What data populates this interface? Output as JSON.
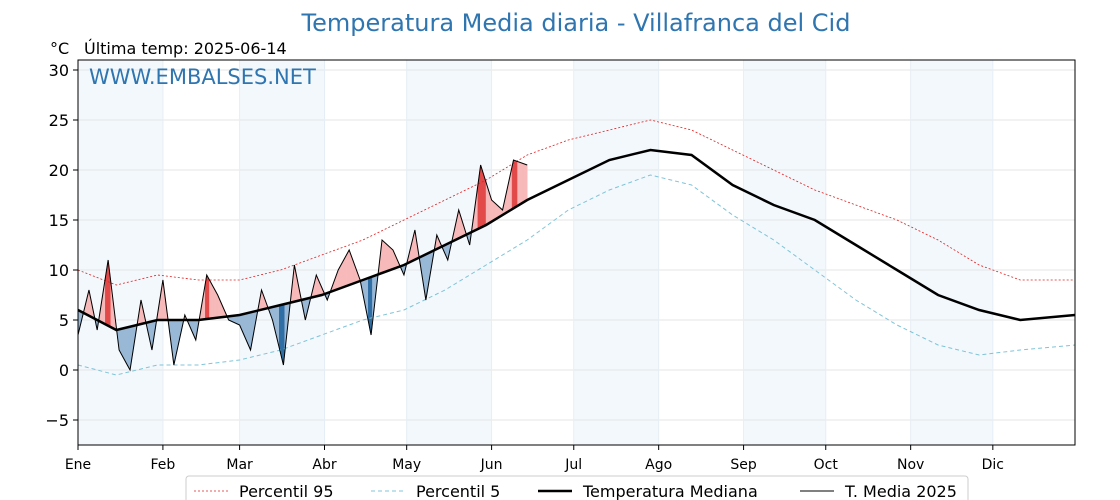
{
  "chart_data": {
    "type": "line",
    "title": "Temperatura Media diaria - Villafranca del Cid",
    "unit_label": "°C",
    "last_temp_label": "Última temp: 2025-06-14",
    "watermark": "WWW.EMBALSES.NET",
    "ylim": [
      -7.5,
      31
    ],
    "yticks": [
      -5,
      0,
      5,
      10,
      15,
      20,
      25,
      30
    ],
    "months": [
      "Ene",
      "Feb",
      "Mar",
      "Abr",
      "May",
      "Jun",
      "Jul",
      "Ago",
      "Sep",
      "Oct",
      "Nov",
      "Dic"
    ],
    "month_start_days": [
      1,
      32,
      60,
      91,
      121,
      152,
      182,
      213,
      244,
      274,
      305,
      335
    ],
    "x_range_days": [
      1,
      365
    ],
    "grid": true,
    "legend_position": "bottom",
    "series": [
      {
        "name": "Percentil 95",
        "color": "#e02020",
        "style": "dotted",
        "x": [
          1,
          15,
          30,
          45,
          60,
          75,
          90,
          105,
          120,
          135,
          150,
          165,
          180,
          195,
          210,
          225,
          240,
          255,
          270,
          285,
          300,
          315,
          330,
          345,
          365
        ],
        "values": [
          10.0,
          8.5,
          9.5,
          9.0,
          9.0,
          10.0,
          11.5,
          13.0,
          15.0,
          17.0,
          19.0,
          21.5,
          23.0,
          24.0,
          25.0,
          24.0,
          22.0,
          20.0,
          18.0,
          16.5,
          15.0,
          13.0,
          10.5,
          9.0,
          9.0
        ]
      },
      {
        "name": "Percentil 5",
        "color": "#7fc4d8",
        "style": "dashed",
        "x": [
          1,
          15,
          30,
          45,
          60,
          75,
          90,
          105,
          120,
          135,
          150,
          165,
          180,
          195,
          210,
          225,
          240,
          255,
          270,
          285,
          300,
          315,
          330,
          345,
          365
        ],
        "values": [
          0.5,
          -0.5,
          0.5,
          0.5,
          1.0,
          2.0,
          3.5,
          5.0,
          6.0,
          8.0,
          10.5,
          13.0,
          16.0,
          18.0,
          19.5,
          18.5,
          15.5,
          13.0,
          10.0,
          7.0,
          4.5,
          2.5,
          1.5,
          2.0,
          2.5
        ]
      },
      {
        "name": "Temperatura Mediana",
        "color": "#000000",
        "style": "solid-thick",
        "x": [
          1,
          15,
          30,
          45,
          60,
          75,
          90,
          105,
          120,
          135,
          150,
          165,
          180,
          195,
          210,
          225,
          240,
          255,
          270,
          285,
          300,
          315,
          330,
          345,
          365
        ],
        "values": [
          6.0,
          4.0,
          5.0,
          5.0,
          5.5,
          6.5,
          7.5,
          9.0,
          10.5,
          12.5,
          14.5,
          17.0,
          19.0,
          21.0,
          22.0,
          21.5,
          18.5,
          16.5,
          15.0,
          12.5,
          10.0,
          7.5,
          6.0,
          5.0,
          5.5
        ]
      },
      {
        "name": "T. Media 2025",
        "color": "#000000",
        "style": "solid-thin",
        "x": [
          1,
          5,
          8,
          12,
          16,
          20,
          24,
          28,
          32,
          36,
          40,
          44,
          48,
          52,
          56,
          60,
          64,
          68,
          72,
          76,
          80,
          84,
          88,
          92,
          96,
          100,
          104,
          108,
          112,
          116,
          120,
          124,
          128,
          132,
          136,
          140,
          144,
          148,
          152,
          156,
          160,
          165
        ],
        "values": [
          3.5,
          8.0,
          4.0,
          11.0,
          2.0,
          0.0,
          7.0,
          2.0,
          9.0,
          0.5,
          5.5,
          3.0,
          9.5,
          7.5,
          5.0,
          4.5,
          2.0,
          8.0,
          5.0,
          0.5,
          10.5,
          5.0,
          9.5,
          7.0,
          10.0,
          12.0,
          9.0,
          3.5,
          13.0,
          12.0,
          9.5,
          14.0,
          7.0,
          13.5,
          11.0,
          16.0,
          12.5,
          20.5,
          17.0,
          16.0,
          21.0,
          20.5
        ]
      }
    ]
  }
}
